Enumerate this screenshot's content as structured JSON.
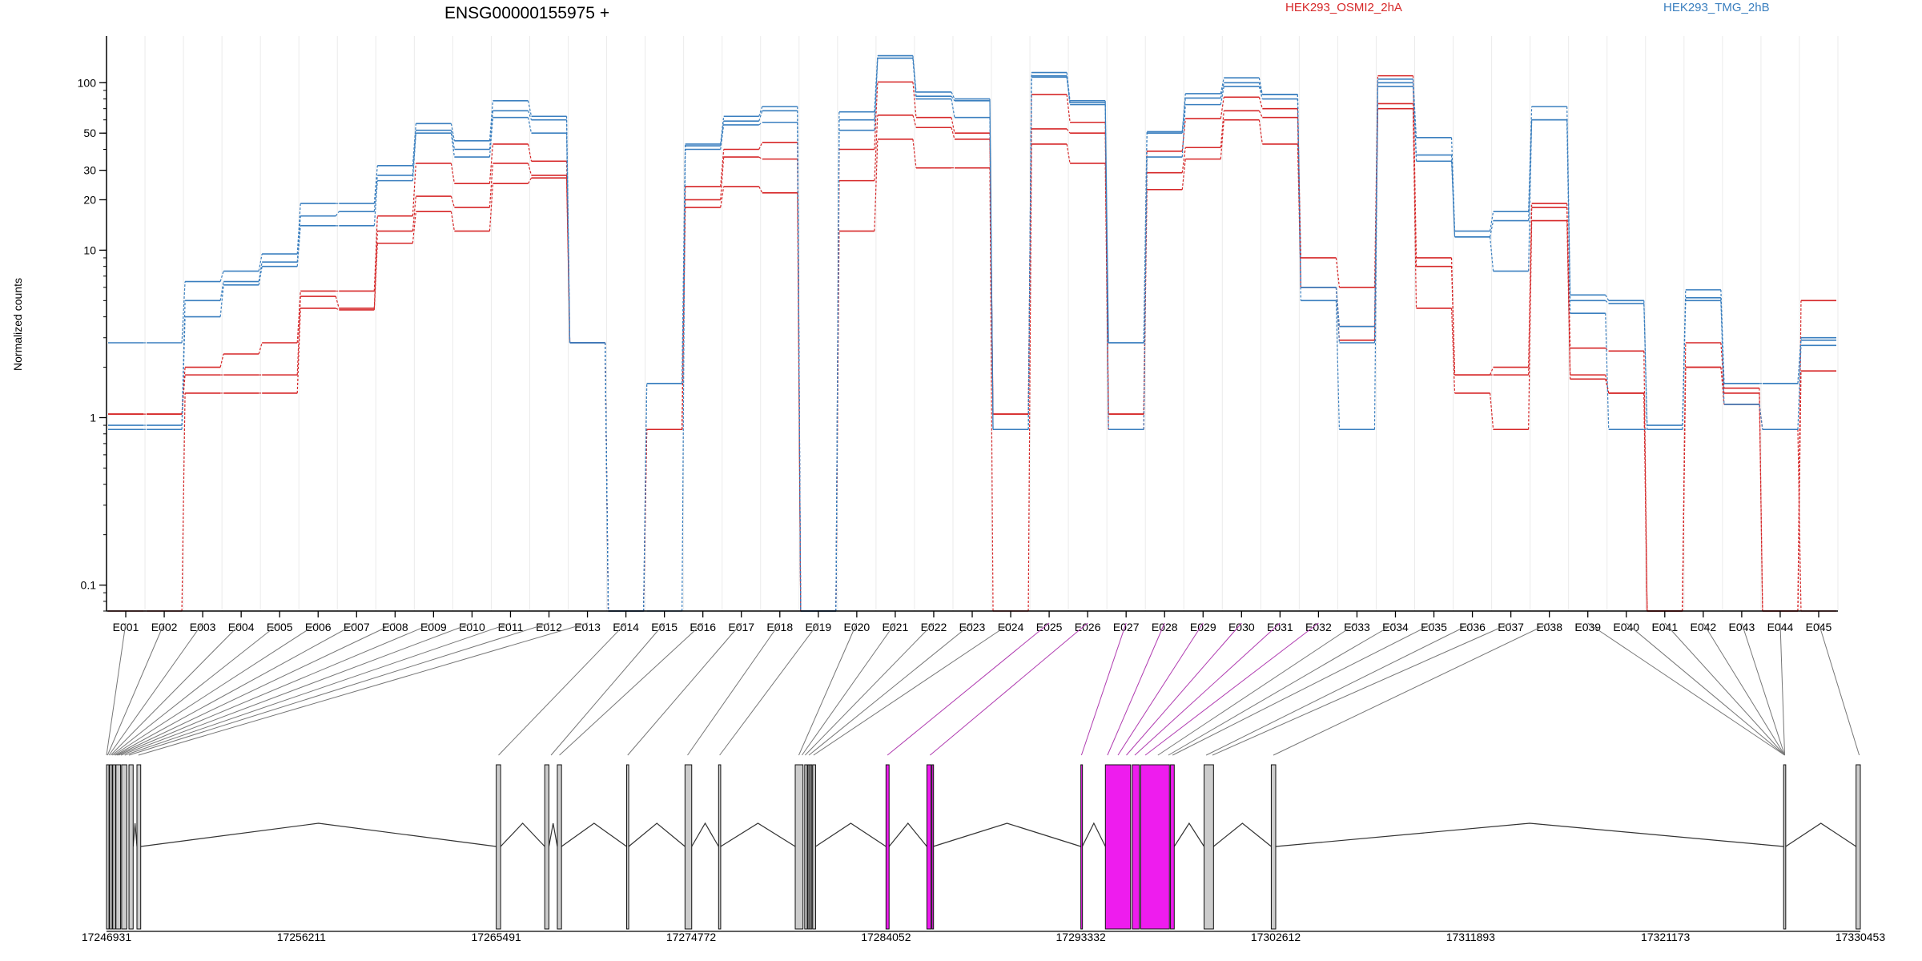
{
  "chart_data": {
    "type": "line",
    "subtype": "step",
    "title": "ENSG00000155975 +",
    "ylabel": "Normalized counts",
    "xlabel": "",
    "yscale": "log",
    "ylim": [
      0.07,
      190
    ],
    "grid": true,
    "legend_placement": "top",
    "y_ticks": [
      "0.1",
      "1",
      "10",
      "20",
      "30",
      "50",
      "100"
    ],
    "y_tick_values": [
      0.1,
      1,
      10,
      20,
      30,
      50,
      100
    ],
    "categories": [
      "E001",
      "E002",
      "E003",
      "E004",
      "E005",
      "E006",
      "E007",
      "E008",
      "E009",
      "E010",
      "E011",
      "E012",
      "E013",
      "E014",
      "E015",
      "E016",
      "E017",
      "E018",
      "E019",
      "E020",
      "E021",
      "E022",
      "E023",
      "E024",
      "E025",
      "E026",
      "E027",
      "E028",
      "E029",
      "E030",
      "E031",
      "E032",
      "E033",
      "E034",
      "E035",
      "E036",
      "E037",
      "E038",
      "E039",
      "E040",
      "E041",
      "E042",
      "E043",
      "E044",
      "E045"
    ],
    "legend": [
      {
        "name": "HEK293_OSMI2_2hA",
        "color": "#d62728"
      },
      {
        "name": "HEK293_TMG_2hB",
        "color": "#3a7fbf"
      }
    ],
    "series": [
      {
        "name": "HEK293_OSMI2_2hA",
        "color": "#d62728",
        "values": [
          1.05,
          1.05,
          2.0,
          2.4,
          2.8,
          5.7,
          5.7,
          16,
          33,
          25,
          43,
          34,
          2.8,
          0.07,
          0.85,
          24,
          40,
          44,
          0.07,
          40,
          101,
          62,
          50,
          1.05,
          85,
          58,
          1.05,
          39,
          61,
          82,
          70,
          9,
          6,
          110,
          9,
          1.8,
          2.0,
          19,
          2.6,
          2.5,
          0.07,
          2.8,
          1.5,
          0.07,
          5.0
        ]
      },
      {
        "name": "",
        "color": "#d62728",
        "values": [
          1.05,
          1.05,
          1.8,
          1.8,
          1.8,
          5.3,
          4.5,
          13,
          21,
          18,
          33,
          28,
          2.8,
          0.07,
          0.85,
          20,
          36,
          35,
          0.07,
          26,
          64,
          54,
          46,
          1.05,
          53,
          50,
          1.05,
          29,
          41,
          68,
          62,
          6,
          3.5,
          75,
          8,
          1.8,
          1.8,
          18,
          1.8,
          1.4,
          0.07,
          2.0,
          1.4,
          0.07,
          1.9
        ]
      },
      {
        "name": "",
        "color": "#d62728",
        "values": [
          0.07,
          0.07,
          1.4,
          1.4,
          1.4,
          4.5,
          4.4,
          11,
          17,
          13,
          25,
          27,
          2.8,
          0.07,
          0.85,
          18,
          24,
          22,
          0.07,
          13,
          46,
          31,
          31,
          0.07,
          43,
          33,
          0.85,
          23,
          35,
          60,
          43,
          6,
          2.9,
          70,
          4.5,
          1.4,
          0.85,
          15,
          1.7,
          1.4,
          0.07,
          2.0,
          1.2,
          0.85,
          0.07
        ]
      },
      {
        "name": "HEK293_TMG_2hB",
        "color": "#3a7fbf",
        "values": [
          2.8,
          2.8,
          6.5,
          7.5,
          9.5,
          19,
          19,
          32,
          57,
          45,
          78,
          63,
          2.8,
          0.07,
          1.6,
          43,
          63,
          72,
          0.07,
          67,
          145,
          88,
          80,
          0.85,
          115,
          78,
          2.8,
          51,
          86,
          107,
          85,
          6,
          3.5,
          105,
          47,
          13,
          17,
          72,
          5.4,
          5.0,
          0.9,
          5.8,
          1.6,
          1.6,
          3.0
        ]
      },
      {
        "name": "",
        "color": "#3a7fbf",
        "values": [
          0.9,
          0.9,
          5.0,
          6.5,
          8.5,
          16,
          17,
          28,
          52,
          40,
          68,
          60,
          2.8,
          0.07,
          1.6,
          42,
          59,
          68,
          0.07,
          60,
          140,
          83,
          78,
          0.85,
          110,
          76,
          2.8,
          50,
          81,
          100,
          85,
          6,
          2.8,
          95,
          37,
          12,
          15,
          60,
          5.0,
          4.8,
          0.85,
          5.2,
          1.6,
          1.6,
          2.9
        ]
      },
      {
        "name": "",
        "color": "#3a7fbf",
        "values": [
          0.85,
          0.85,
          4.0,
          6.2,
          8.0,
          14,
          14,
          26,
          50,
          36,
          62,
          50,
          2.8,
          0.07,
          0.07,
          40,
          56,
          58,
          0.07,
          52,
          140,
          80,
          62,
          0.85,
          108,
          74,
          0.85,
          36,
          74,
          95,
          80,
          5,
          0.85,
          100,
          34,
          12,
          7.5,
          60,
          4.2,
          0.85,
          0.85,
          5.0,
          1.2,
          0.85,
          2.7
        ]
      }
    ],
    "gene_axis": {
      "ticks": [
        "17246931",
        "17256211",
        "17265491",
        "17274772",
        "17284052",
        "17293332",
        "17302612",
        "17311893",
        "17321173",
        "17330453"
      ],
      "tick_values": [
        17246931,
        17256211,
        17265491,
        17274772,
        17284052,
        17293332,
        17302612,
        17311893,
        17321173,
        17330453
      ],
      "range": [
        17246931,
        17330453
      ],
      "exon_color": "#cccccc",
      "highlight_color": "#ee1cee",
      "exons": [
        {
          "start": 17246931,
          "end": 17247050
        },
        {
          "start": 17247080,
          "end": 17247200
        },
        {
          "start": 17247230,
          "end": 17247360
        },
        {
          "start": 17247380,
          "end": 17247600
        },
        {
          "start": 17247650,
          "end": 17247900
        },
        {
          "start": 17248000,
          "end": 17248200
        },
        {
          "start": 17248380,
          "end": 17248560
        },
        {
          "start": 17265491,
          "end": 17265700
        },
        {
          "start": 17267800,
          "end": 17268000
        },
        {
          "start": 17268400,
          "end": 17268600
        },
        {
          "start": 17271700,
          "end": 17271800
        },
        {
          "start": 17274480,
          "end": 17274800
        },
        {
          "start": 17276080,
          "end": 17276180
        },
        {
          "start": 17279730,
          "end": 17280100
        },
        {
          "start": 17280180,
          "end": 17280300
        },
        {
          "start": 17280340,
          "end": 17280420
        },
        {
          "start": 17280440,
          "end": 17280520
        },
        {
          "start": 17280560,
          "end": 17280700
        },
        {
          "start": 17284052,
          "end": 17284200,
          "highlight": true
        },
        {
          "start": 17286000,
          "end": 17286200,
          "highlight": true
        },
        {
          "start": 17286240,
          "end": 17286300,
          "highlight": true
        },
        {
          "start": 17293332,
          "end": 17293400,
          "highlight": true
        },
        {
          "start": 17294500,
          "end": 17295700,
          "highlight": true
        },
        {
          "start": 17295780,
          "end": 17296120,
          "highlight": true
        },
        {
          "start": 17296180,
          "end": 17297550,
          "highlight": true
        },
        {
          "start": 17297600,
          "end": 17297780,
          "highlight": true
        },
        {
          "start": 17299200,
          "end": 17299650
        },
        {
          "start": 17302400,
          "end": 17302612
        },
        {
          "start": 17326800,
          "end": 17326900
        },
        {
          "start": 17330250,
          "end": 17330453
        }
      ],
      "connectors": [
        {
          "exon": "E001",
          "pos": 17246931
        },
        {
          "exon": "E002",
          "pos": 17246980
        },
        {
          "exon": "E003",
          "pos": 17247050
        },
        {
          "exon": "E004",
          "pos": 17247130
        },
        {
          "exon": "E005",
          "pos": 17247200
        },
        {
          "exon": "E006",
          "pos": 17247270
        },
        {
          "exon": "E007",
          "pos": 17247350
        },
        {
          "exon": "E008",
          "pos": 17247420
        },
        {
          "exon": "E009",
          "pos": 17247500
        },
        {
          "exon": "E010",
          "pos": 17247620
        },
        {
          "exon": "E011",
          "pos": 17247800
        },
        {
          "exon": "E012",
          "pos": 17248000
        },
        {
          "exon": "E013",
          "pos": 17248450
        },
        {
          "exon": "E014",
          "pos": 17265600
        },
        {
          "exon": "E015",
          "pos": 17268100
        },
        {
          "exon": "E016",
          "pos": 17268500
        },
        {
          "exon": "E017",
          "pos": 17271750
        },
        {
          "exon": "E018",
          "pos": 17274600
        },
        {
          "exon": "E019",
          "pos": 17276130
        },
        {
          "exon": "E020",
          "pos": 17279900
        },
        {
          "exon": "E021",
          "pos": 17280050
        },
        {
          "exon": "E022",
          "pos": 17280200
        },
        {
          "exon": "E023",
          "pos": 17280380
        },
        {
          "exon": "E024",
          "pos": 17280600
        },
        {
          "exon": "E025",
          "pos": 17284120,
          "highlight": true
        },
        {
          "exon": "E026",
          "pos": 17286150,
          "highlight": true
        },
        {
          "exon": "E027",
          "pos": 17293360,
          "highlight": true
        },
        {
          "exon": "E028",
          "pos": 17294600,
          "highlight": true
        },
        {
          "exon": "E029",
          "pos": 17295100,
          "highlight": true
        },
        {
          "exon": "E030",
          "pos": 17295500,
          "highlight": true
        },
        {
          "exon": "E031",
          "pos": 17295900,
          "highlight": true
        },
        {
          "exon": "E032",
          "pos": 17296400,
          "highlight": true
        },
        {
          "exon": "E033",
          "pos": 17297000
        },
        {
          "exon": "E034",
          "pos": 17297500
        },
        {
          "exon": "E035",
          "pos": 17297700
        },
        {
          "exon": "E036",
          "pos": 17299300
        },
        {
          "exon": "E037",
          "pos": 17299600
        },
        {
          "exon": "E038",
          "pos": 17302500
        },
        {
          "exon": "E039",
          "pos": 17326850
        },
        {
          "exon": "E040",
          "pos": 17326850
        },
        {
          "exon": "E041",
          "pos": 17326850
        },
        {
          "exon": "E042",
          "pos": 17326850
        },
        {
          "exon": "E043",
          "pos": 17326850
        },
        {
          "exon": "E044",
          "pos": 17326850
        },
        {
          "exon": "E045",
          "pos": 17330400
        }
      ]
    }
  }
}
